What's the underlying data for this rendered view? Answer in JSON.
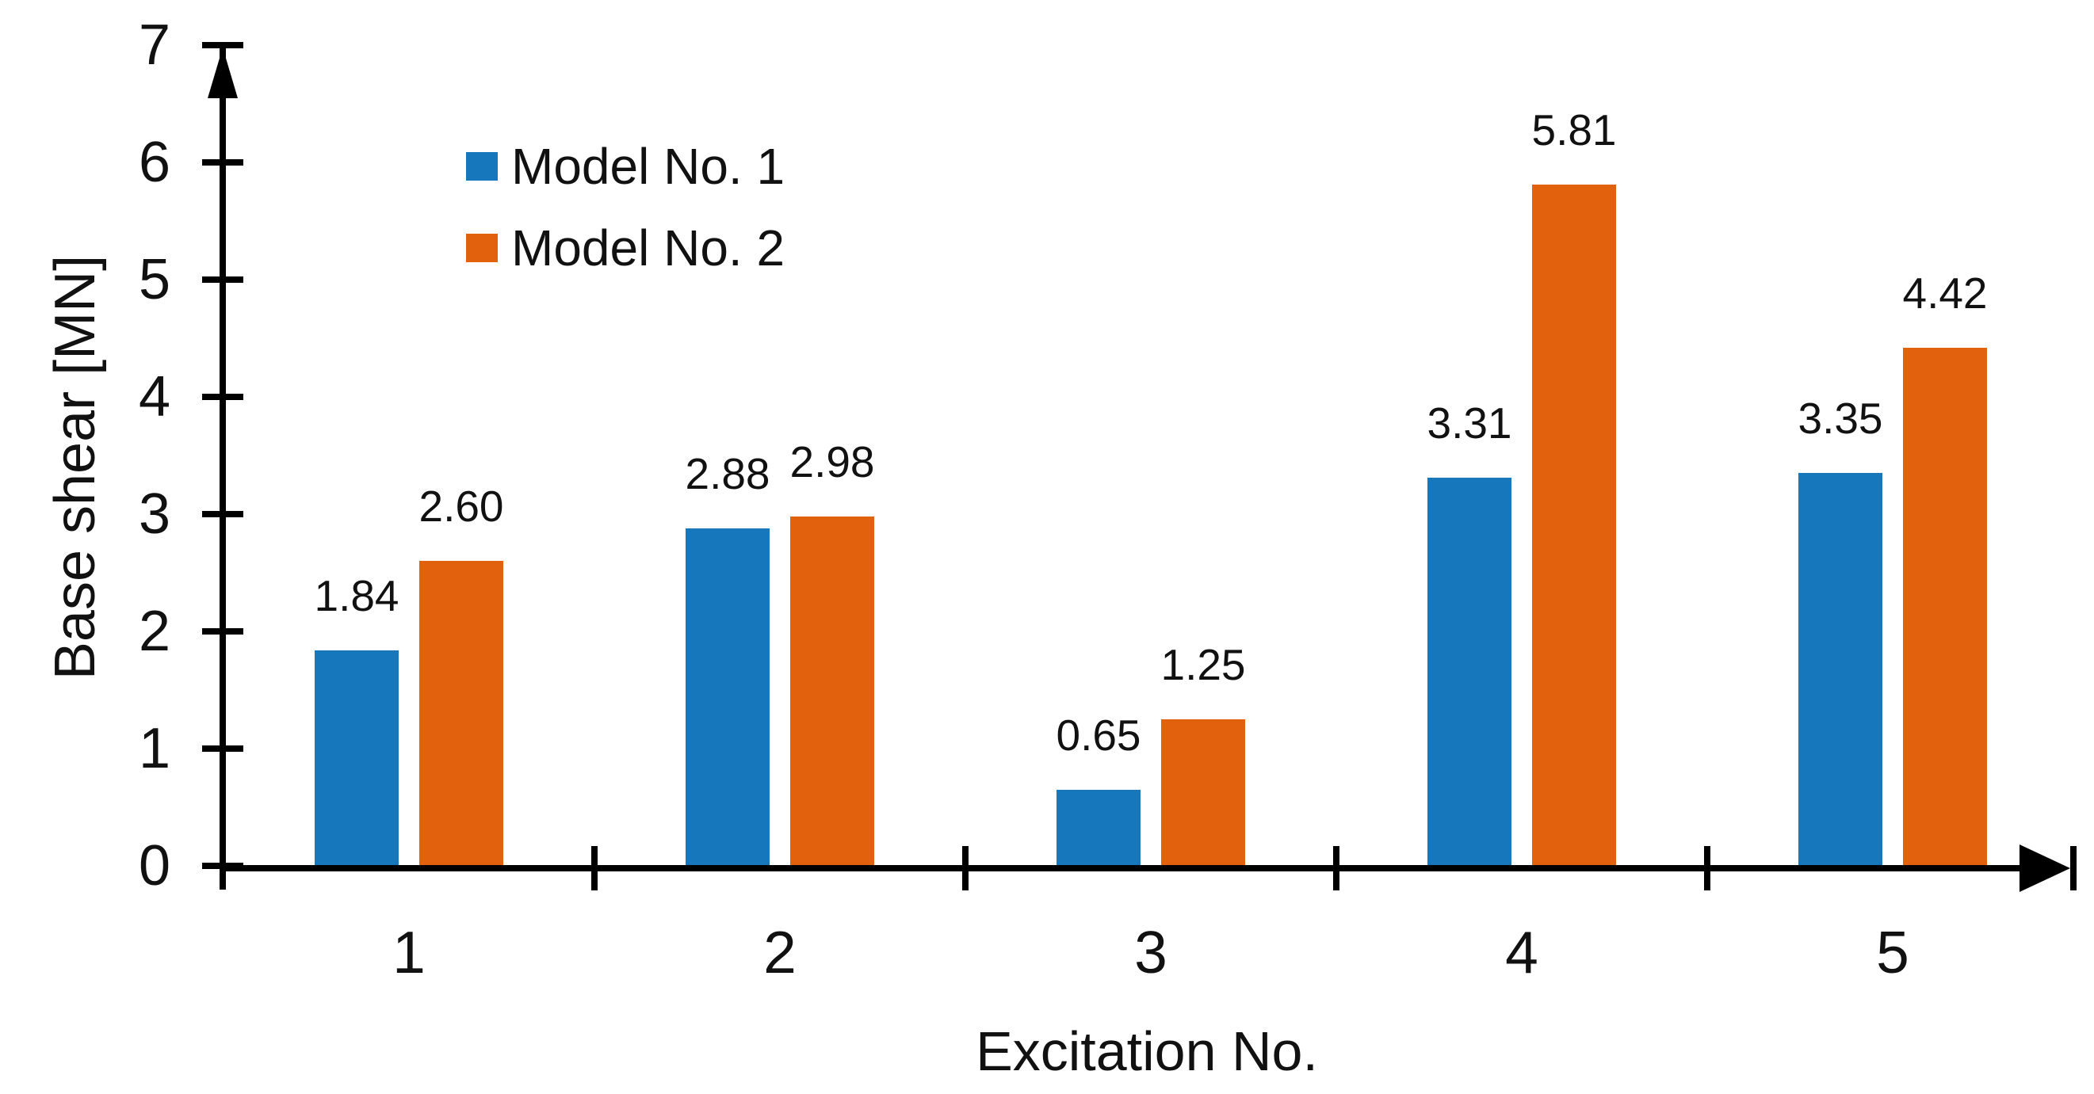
{
  "chart_data": {
    "type": "bar",
    "title": "",
    "xlabel": "Excitation No.",
    "ylabel": "Base shear [MN]",
    "categories": [
      "1",
      "2",
      "3",
      "4",
      "5"
    ],
    "series": [
      {
        "name": "Model No. 1",
        "color": "#1777bd",
        "values": [
          1.84,
          2.88,
          0.65,
          3.31,
          3.35
        ]
      },
      {
        "name": "Model No. 2",
        "color": "#e2610d",
        "values": [
          2.6,
          2.98,
          1.25,
          5.81,
          4.42
        ]
      }
    ],
    "value_labels": [
      "1.84",
      "2.88",
      "0.65",
      "3.31",
      "3.35",
      "2.60",
      "2.98",
      "1.25",
      "5.81",
      "4.42"
    ],
    "ylim": [
      0,
      7
    ],
    "yticks": [
      "0",
      "1",
      "2",
      "3",
      "4",
      "5",
      "6",
      "7"
    ],
    "grid": false,
    "legend_position": "upper-left-inside",
    "axis_color": "#000000",
    "background_color": "#ffffff"
  }
}
